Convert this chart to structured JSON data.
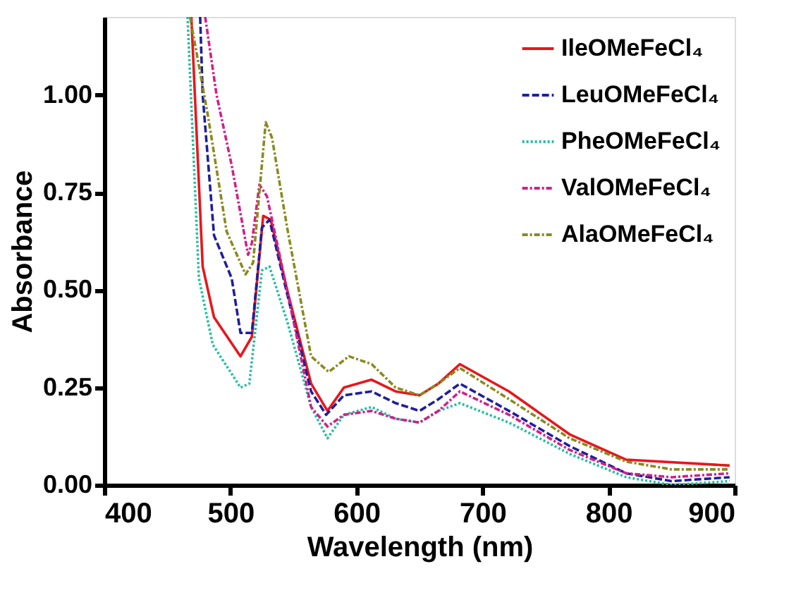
{
  "chart_data": {
    "type": "line",
    "xlabel": "Wavelength (nm)",
    "ylabel": "Absorbance",
    "xlim": [
      400,
      900
    ],
    "xticks": [
      400,
      500,
      600,
      700,
      800,
      900
    ],
    "ylim": [
      0,
      1.2
    ],
    "yticks": [
      {
        "value": 0,
        "label": "0.00"
      },
      {
        "value": 0.25,
        "label": "0.25"
      },
      {
        "value": 0.5,
        "label": "0.50"
      },
      {
        "value": 0.75,
        "label": "0.75"
      },
      {
        "value": 1,
        "label": "1.00"
      }
    ],
    "grid": false,
    "legend": "top right",
    "marker": "none",
    "series": [
      {
        "name": "IleOMeFeCl₄",
        "color": "#e8161b",
        "line_style": "solid",
        "x": [
          469,
          478,
          487,
          508,
          517,
          526,
          532,
          545,
          564,
          577,
          590,
          612,
          631,
          650,
          665,
          682,
          721,
          769,
          814,
          896
        ],
        "values": [
          1.2,
          0.56,
          0.43,
          0.33,
          0.38,
          0.69,
          0.68,
          0.5,
          0.26,
          0.19,
          0.25,
          0.27,
          0.24,
          0.23,
          0.26,
          0.31,
          0.24,
          0.13,
          0.065,
          0.05
        ]
      },
      {
        "name": "LeuOMeFeCl₄",
        "color": "#1f1f9c",
        "line_style": "dashed",
        "x": [
          476,
          478,
          487,
          501,
          508,
          517,
          525,
          531,
          545,
          564,
          576,
          590,
          612,
          631,
          650,
          665,
          682,
          721,
          769,
          814,
          850,
          896
        ],
        "values": [
          1.2,
          1.0,
          0.64,
          0.53,
          0.39,
          0.39,
          0.66,
          0.68,
          0.49,
          0.24,
          0.18,
          0.23,
          0.24,
          0.21,
          0.19,
          0.22,
          0.26,
          0.19,
          0.1,
          0.03,
          0.01,
          0.02
        ]
      },
      {
        "name": "PheOMeFeCl₄",
        "color": "#20c0a0",
        "line_style": "dotted",
        "x": [
          466,
          475,
          486,
          508,
          515,
          525,
          531,
          545,
          564,
          577,
          590,
          612,
          631,
          650,
          665,
          682,
          721,
          769,
          814,
          850,
          896
        ],
        "values": [
          1.2,
          0.53,
          0.36,
          0.25,
          0.26,
          0.55,
          0.56,
          0.42,
          0.2,
          0.12,
          0.18,
          0.2,
          0.17,
          0.16,
          0.19,
          0.21,
          0.16,
          0.08,
          0.02,
          0,
          0.01
        ]
      },
      {
        "name": "ValOMeFeCl₄",
        "color": "#d0208a",
        "line_style": "dashdot",
        "x": [
          480,
          489,
          501,
          514,
          517,
          523,
          529,
          545,
          564,
          577,
          590,
          612,
          631,
          650,
          665,
          682,
          721,
          769,
          814,
          850,
          896
        ],
        "values": [
          1.2,
          1.0,
          0.82,
          0.59,
          0.62,
          0.77,
          0.74,
          0.5,
          0.2,
          0.15,
          0.18,
          0.19,
          0.17,
          0.16,
          0.19,
          0.24,
          0.18,
          0.09,
          0.03,
          0.02,
          0.03
        ]
      },
      {
        "name": "AlaOMeFeCl₄",
        "color": "#8a8a20",
        "line_style": "dashdot",
        "x": [
          468,
          482,
          497,
          512,
          518,
          528,
          533,
          545,
          564,
          578,
          594,
          612,
          631,
          650,
          665,
          682,
          721,
          769,
          814,
          850,
          896
        ],
        "values": [
          1.2,
          0.95,
          0.65,
          0.54,
          0.57,
          0.93,
          0.89,
          0.66,
          0.33,
          0.29,
          0.33,
          0.31,
          0.25,
          0.23,
          0.26,
          0.3,
          0.22,
          0.12,
          0.06,
          0.04,
          0.04
        ]
      }
    ]
  }
}
